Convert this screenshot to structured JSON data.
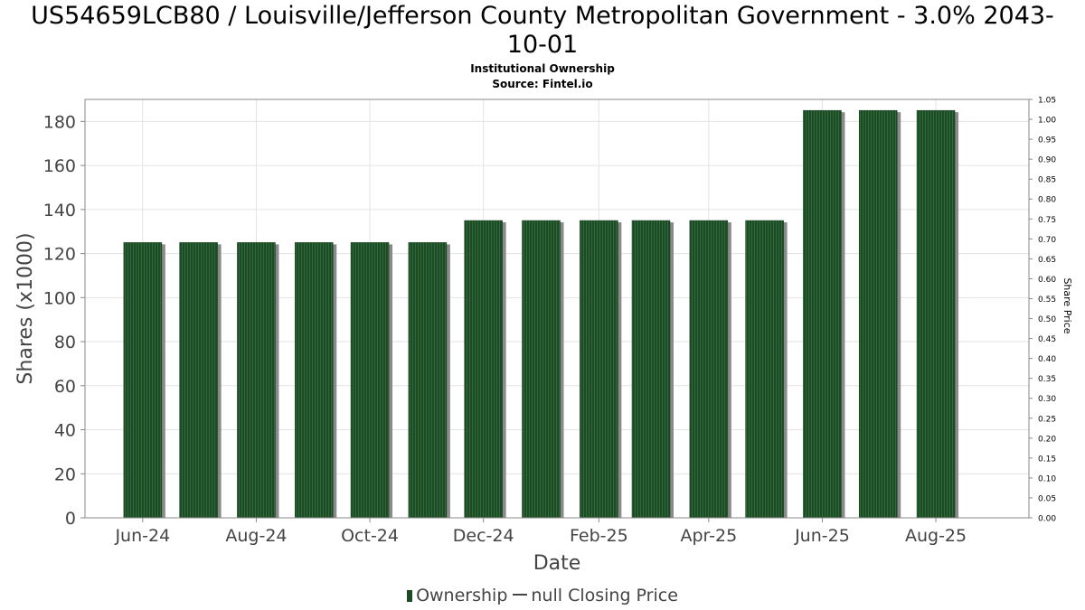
{
  "header": {
    "title_line1": "US54659LCB80 / Louisville/Jefferson County Metropolitan Government - 3.0% 2043-",
    "title_line2": "10-01",
    "subtitle1": "Institutional Ownership",
    "subtitle2": "Source: Fintel.io"
  },
  "legend": {
    "ownership": "Ownership",
    "price": "null Closing Price"
  },
  "colors": {
    "bar": "#1d4b26",
    "bar_shadow": "#8a8a8a",
    "grid": "#e3e3e3",
    "axis_text": "#444444"
  },
  "chart_data": {
    "type": "bar",
    "xlabel": "Date",
    "ylabel": "Shares (x1000)",
    "y2label": "Share Price",
    "ylim": [
      0,
      190
    ],
    "y2lim": [
      0,
      1.05
    ],
    "yticks": [
      0,
      20,
      40,
      60,
      80,
      100,
      120,
      140,
      160,
      180
    ],
    "y2ticks": [
      "0.00",
      "0.05",
      "0.10",
      "0.15",
      "0.20",
      "0.25",
      "0.30",
      "0.35",
      "0.40",
      "0.45",
      "0.50",
      "0.55",
      "0.60",
      "0.65",
      "0.70",
      "0.75",
      "0.80",
      "0.85",
      "0.90",
      "0.95",
      "1.00",
      "1.05"
    ],
    "xlim": [
      "2024-05-01",
      "2025-09-20"
    ],
    "xticks": [
      {
        "label": "Jun-24",
        "date": "2024-06-01"
      },
      {
        "label": "Aug-24",
        "date": "2024-08-01"
      },
      {
        "label": "Oct-24",
        "date": "2024-10-01"
      },
      {
        "label": "Dec-24",
        "date": "2024-12-01"
      },
      {
        "label": "Feb-25",
        "date": "2025-02-01"
      },
      {
        "label": "Apr-25",
        "date": "2025-04-01"
      },
      {
        "label": "Jun-25",
        "date": "2025-06-01"
      },
      {
        "label": "Aug-25",
        "date": "2025-08-01"
      }
    ],
    "grid": true,
    "legend_position": "bottom",
    "series": [
      {
        "name": "Ownership",
        "points": [
          {
            "date": "2024-06-01",
            "value": 125
          },
          {
            "date": "2024-07-01",
            "value": 125
          },
          {
            "date": "2024-08-01",
            "value": 125
          },
          {
            "date": "2024-09-01",
            "value": 125
          },
          {
            "date": "2024-10-01",
            "value": 125
          },
          {
            "date": "2024-11-01",
            "value": 125
          },
          {
            "date": "2024-12-01",
            "value": 135
          },
          {
            "date": "2025-01-01",
            "value": 135
          },
          {
            "date": "2025-02-01",
            "value": 135
          },
          {
            "date": "2025-03-01",
            "value": 135
          },
          {
            "date": "2025-04-01",
            "value": 135
          },
          {
            "date": "2025-05-01",
            "value": 135
          },
          {
            "date": "2025-06-01",
            "value": 185
          },
          {
            "date": "2025-07-01",
            "value": 185
          },
          {
            "date": "2025-08-01",
            "value": 185
          }
        ]
      }
    ]
  }
}
